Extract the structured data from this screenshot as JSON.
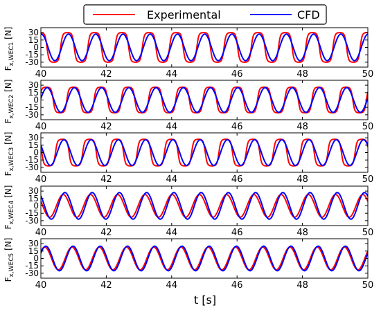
{
  "chart_data": {
    "type": "line",
    "xlabel": "t [s]",
    "xlim": [
      40,
      50
    ],
    "x_ticks": [
      "40",
      "42",
      "44",
      "46",
      "48",
      "50"
    ],
    "y_ticks": [
      "30",
      "15",
      "0",
      "-15",
      "-30"
    ],
    "ylim": [
      -40,
      40
    ],
    "grid": false,
    "legend_position": "top-center",
    "series": [
      {
        "name": "Experimental",
        "color": "#ff0000"
      },
      {
        "name": "CFD",
        "color": "#0000ff"
      }
    ],
    "panels": [
      {
        "ylabel": "Fₓ,WEC1 [N]",
        "ylabel_main": "F",
        "ylabel_sub": "x,WEC1",
        "ylabel_unit": " [N]",
        "period": 0.833,
        "experimental": {
          "amplitude": 30,
          "phase_deg": 92,
          "shape": "flat-top"
        },
        "cfd": {
          "amplitude": 27,
          "phase_deg": 78,
          "shape": "sinusoidal"
        }
      },
      {
        "ylabel": "Fₓ,WEC2 [N]",
        "ylabel_main": "F",
        "ylabel_sub": "x,WEC2",
        "ylabel_unit": " [N]",
        "period": 0.833,
        "experimental": {
          "amplitude": 26,
          "phase_deg": 10,
          "shape": "flat-top"
        },
        "cfd": {
          "amplitude": 25,
          "phase_deg": 0,
          "shape": "sinusoidal"
        }
      },
      {
        "ylabel": "Fₓ,WEC3 [N]",
        "ylabel_main": "F",
        "ylabel_sub": "x,WEC3",
        "ylabel_unit": " [N]",
        "period": 0.833,
        "experimental": {
          "amplitude": 27,
          "phase_deg": 160,
          "shape": "flat-top"
        },
        "cfd": {
          "amplitude": 26,
          "phase_deg": 138,
          "shape": "sinusoidal"
        }
      },
      {
        "ylabel": "Fₓ,WEC4 [N]",
        "ylabel_main": "F",
        "ylabel_sub": "x,WEC4",
        "ylabel_unit": " [N]",
        "period": 0.833,
        "experimental": {
          "amplitude": 23,
          "phase_deg": 148,
          "shape": "sinusoidal"
        },
        "cfd": {
          "amplitude": 27,
          "phase_deg": 125,
          "shape": "sinusoidal"
        }
      },
      {
        "ylabel": "Fₓ,WEC5 [N]",
        "ylabel_main": "F",
        "ylabel_sub": "x,WEC5",
        "ylabel_unit": " [N]",
        "period": 0.833,
        "experimental": {
          "amplitude": 23,
          "phase_deg": 32,
          "shape": "sinusoidal"
        },
        "cfd": {
          "amplitude": 25,
          "phase_deg": 18,
          "shape": "sinusoidal"
        }
      }
    ]
  }
}
